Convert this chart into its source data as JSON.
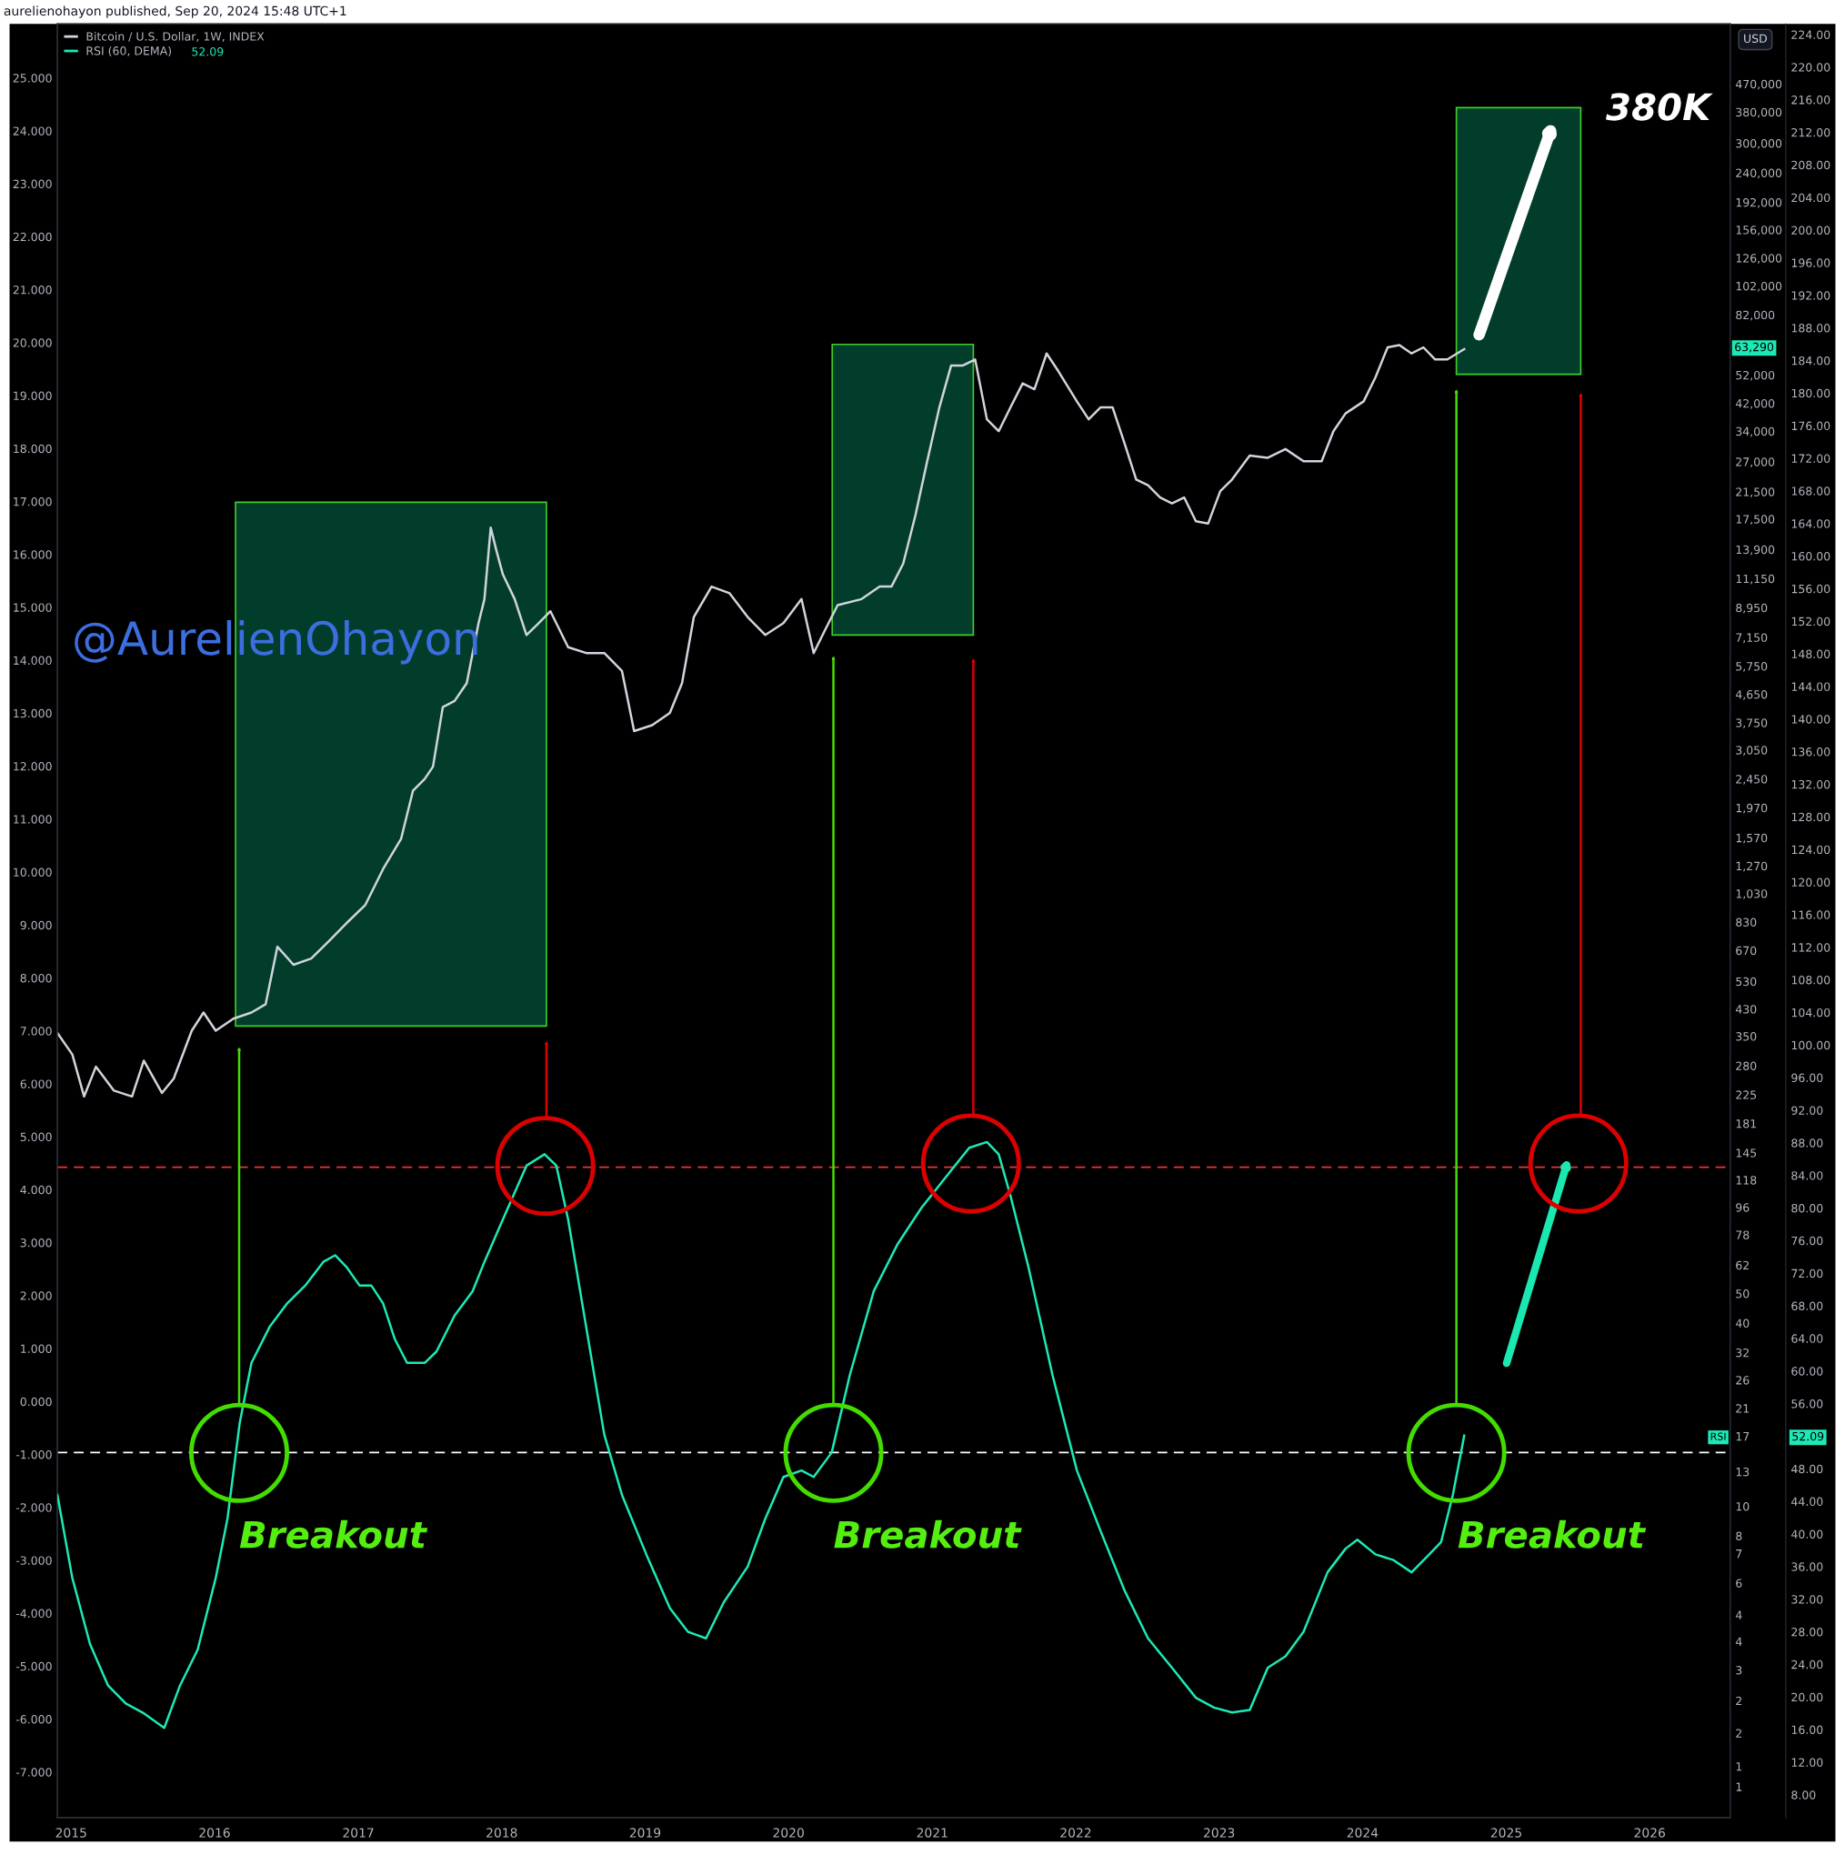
{
  "chart_data": {
    "type": "line",
    "log": "y2",
    "legend": "top left",
    "y2label": "USD",
    "xlim": [
      "2014-11-27",
      "2026-07-25"
    ],
    "xticks": [
      "2015",
      "2016",
      "2017",
      "2018",
      "2019",
      "2020",
      "2021",
      "2022",
      "2023",
      "2024",
      "2025",
      "2026"
    ],
    "ylim": [
      -7.86,
      26.02
    ],
    "yticks": [
      {
        "value": -7,
        "label": "-7.000"
      },
      {
        "value": -6,
        "label": "-6.000"
      },
      {
        "value": -5,
        "label": "-5.000"
      },
      {
        "value": -4,
        "label": "-4.000"
      },
      {
        "value": -3,
        "label": "-3.000"
      },
      {
        "value": -2,
        "label": "-2.000"
      },
      {
        "value": -1,
        "label": "-1.000"
      },
      {
        "value": 0,
        "label": "0.000"
      },
      {
        "value": 1,
        "label": "1.000"
      },
      {
        "value": 2,
        "label": "2.000"
      },
      {
        "value": 3,
        "label": "3.000"
      },
      {
        "value": 4,
        "label": "4.000"
      },
      {
        "value": 5,
        "label": "5.000"
      },
      {
        "value": 6,
        "label": "6.000"
      },
      {
        "value": 7,
        "label": "7.000"
      },
      {
        "value": 8,
        "label": "8.000"
      },
      {
        "value": 9,
        "label": "9.000"
      },
      {
        "value": 10,
        "label": "10.000"
      },
      {
        "value": 11,
        "label": "11.000"
      },
      {
        "value": 12,
        "label": "12.000"
      },
      {
        "value": 13,
        "label": "13.000"
      },
      {
        "value": 14,
        "label": "14.000"
      },
      {
        "value": 15,
        "label": "15.000"
      },
      {
        "value": 16,
        "label": "16.000"
      },
      {
        "value": 17,
        "label": "17.000"
      },
      {
        "value": 18,
        "label": "18.000"
      },
      {
        "value": 19,
        "label": "19.000"
      },
      {
        "value": 20,
        "label": "20.000"
      },
      {
        "value": 21,
        "label": "21.000"
      },
      {
        "value": 22,
        "label": "22.000"
      },
      {
        "value": 23,
        "label": "23.000"
      },
      {
        "value": 24,
        "label": "24.000"
      },
      {
        "value": 25,
        "label": "25.000"
      }
    ],
    "y2lim": [
      0.95,
      740000
    ],
    "y2ticks": [
      {
        "value": 1.2,
        "label": "1"
      },
      {
        "value": 1.4,
        "label": "1"
      },
      {
        "value": 1.8,
        "label": "2"
      },
      {
        "value": 2.3,
        "label": "2"
      },
      {
        "value": 2.9,
        "label": "3"
      },
      {
        "value": 3.6,
        "label": "4"
      },
      {
        "value": 4.4,
        "label": "4"
      },
      {
        "value": 5.6,
        "label": "6"
      },
      7,
      8,
      10,
      13,
      17,
      21,
      26,
      32,
      40,
      50,
      62,
      78,
      96,
      118,
      145,
      181,
      225,
      280,
      350,
      430,
      530,
      670,
      830,
      {
        "value": 1030,
        "label": "1,030"
      },
      {
        "value": 1270,
        "label": "1,270"
      },
      {
        "value": 1570,
        "label": "1,570"
      },
      {
        "value": 1970,
        "label": "1,970"
      },
      {
        "value": 2450,
        "label": "2,450"
      },
      {
        "value": 3050,
        "label": "3,050"
      },
      {
        "value": 3750,
        "label": "3,750"
      },
      {
        "value": 4650,
        "label": "4,650"
      },
      {
        "value": 5750,
        "label": "5,750"
      },
      {
        "value": 7150,
        "label": "7,150"
      },
      {
        "value": 8950,
        "label": "8,950"
      },
      {
        "value": 11150,
        "label": "11,150"
      },
      {
        "value": 13900,
        "label": "13,900"
      },
      {
        "value": 17500,
        "label": "17,500"
      },
      {
        "value": 21500,
        "label": "21,500"
      },
      {
        "value": 27000,
        "label": "27,000"
      },
      {
        "value": 34000,
        "label": "34,000"
      },
      {
        "value": 42000,
        "label": "42,000"
      },
      {
        "value": 52000,
        "label": "52,000"
      },
      {
        "value": 82000,
        "label": "82,000"
      },
      {
        "value": 102000,
        "label": "102,000"
      },
      {
        "value": 126000,
        "label": "126,000"
      },
      {
        "value": 156000,
        "label": "156,000"
      },
      {
        "value": 192000,
        "label": "192,000"
      },
      {
        "value": 240000,
        "label": "240,000"
      },
      {
        "value": 300000,
        "label": "300,000"
      },
      {
        "value": 380000,
        "label": "380,000"
      },
      {
        "value": 470000,
        "label": "470,000"
      }
    ],
    "y3lim": [
      5.2,
      225.3
    ],
    "y3ticks": [
      {
        "value": 8,
        "label": "8.00"
      },
      {
        "value": 12,
        "label": "12.00"
      },
      {
        "value": 16,
        "label": "16.00"
      },
      {
        "value": 20,
        "label": "20.00"
      },
      {
        "value": 24,
        "label": "24.00"
      },
      {
        "value": 28,
        "label": "28.00"
      },
      {
        "value": 32,
        "label": "32.00"
      },
      {
        "value": 36,
        "label": "36.00"
      },
      {
        "value": 40,
        "label": "40.00"
      },
      {
        "value": 44,
        "label": "44.00"
      },
      {
        "value": 48,
        "label": "48.00"
      },
      {
        "value": 56,
        "label": "56.00"
      },
      {
        "value": 60,
        "label": "60.00"
      },
      {
        "value": 64,
        "label": "64.00"
      },
      {
        "value": 68,
        "label": "68.00"
      },
      {
        "value": 72,
        "label": "72.00"
      },
      {
        "value": 76,
        "label": "76.00"
      },
      {
        "value": 80,
        "label": "80.00"
      },
      {
        "value": 84,
        "label": "84.00"
      },
      {
        "value": 88,
        "label": "88.00"
      },
      {
        "value": 92,
        "label": "92.00"
      },
      {
        "value": 96,
        "label": "96.00"
      },
      {
        "value": 100,
        "label": "100.00"
      },
      {
        "value": 104,
        "label": "104.00"
      },
      {
        "value": 108,
        "label": "108.00"
      },
      {
        "value": 112,
        "label": "112.00"
      },
      {
        "value": 116,
        "label": "116.00"
      },
      {
        "value": 120,
        "label": "120.00"
      },
      {
        "value": 124,
        "label": "124.00"
      },
      {
        "value": 128,
        "label": "128.00"
      },
      {
        "value": 132,
        "label": "132.00"
      },
      {
        "value": 136,
        "label": "136.00"
      },
      {
        "value": 140,
        "label": "140.00"
      },
      {
        "value": 144,
        "label": "144.00"
      },
      {
        "value": 148,
        "label": "148.00"
      },
      {
        "value": 152,
        "label": "152.00"
      },
      {
        "value": 156,
        "label": "156.00"
      },
      {
        "value": 160,
        "label": "160.00"
      },
      {
        "value": 164,
        "label": "164.00"
      },
      {
        "value": 168,
        "label": "168.00"
      },
      {
        "value": 172,
        "label": "172.00"
      },
      {
        "value": 176,
        "label": "176.00"
      },
      {
        "value": 180,
        "label": "180.00"
      },
      {
        "value": 184,
        "label": "184.00"
      },
      {
        "value": 188,
        "label": "188.00"
      },
      {
        "value": 192,
        "label": "192.00"
      },
      {
        "value": 196,
        "label": "196.00"
      },
      {
        "value": 200,
        "label": "200.00"
      },
      {
        "value": 204,
        "label": "204.00"
      },
      {
        "value": 208,
        "label": "208.00"
      },
      {
        "value": 212,
        "label": "212.00"
      },
      {
        "value": 216,
        "label": "216.00"
      },
      {
        "value": 220,
        "label": "220.00"
      },
      {
        "value": 224,
        "label": "224.00"
      }
    ],
    "ref_lines": [
      {
        "axis": "y3",
        "value": 50,
        "color": "#ffffff",
        "line_style": "dashed"
      },
      {
        "axis": "y3",
        "value": 85,
        "color": "#e53935",
        "line_style": "dashed"
      }
    ],
    "annotations": [
      "aurelienohayon published, Sep 20, 2024 15:48 UTC+1",
      "@AurelienOhayon",
      "Breakout",
      "Breakout",
      "Breakout",
      "380K",
      "52.09",
      "RSI",
      "63,290",
      "52.09"
    ],
    "series": [
      {
        "name": "Bitcoin / U.S. Dollar, 1W, INDEX",
        "axis": "y2",
        "color": "#d1d4dc",
        "x": [
          "2014-11-27",
          "2015-01-04",
          "2015-02-03",
          "2015-03-05",
          "2015-04-20",
          "2015-06-05",
          "2015-07-05",
          "2015-08-20",
          "2015-09-19",
          "2015-11-04",
          "2015-12-04",
          "2016-01-04",
          "2016-02-18",
          "2016-04-04",
          "2016-05-10",
          "2016-06-09",
          "2016-07-20",
          "2016-09-03",
          "2016-10-19",
          "2016-12-03",
          "2017-01-19",
          "2017-03-05",
          "2017-04-20",
          "2017-05-20",
          "2017-06-19",
          "2017-07-10",
          "2017-08-04",
          "2017-09-03",
          "2017-10-04",
          "2017-11-03",
          "2017-11-18",
          "2017-12-04",
          "2017-12-19",
          "2018-01-04",
          "2018-02-03",
          "2018-03-05",
          "2018-04-05",
          "2018-05-05",
          "2018-06-19",
          "2018-08-04",
          "2018-09-19",
          "2018-11-03",
          "2018-12-04",
          "2019-01-19",
          "2019-03-05",
          "2019-04-05",
          "2019-05-05",
          "2019-06-19",
          "2019-08-04",
          "2019-09-19",
          "2019-11-03",
          "2019-12-19",
          "2020-02-03",
          "2020-03-05",
          "2020-04-04",
          "2020-05-05",
          "2020-07-05",
          "2020-08-20",
          "2020-09-19",
          "2020-10-19",
          "2020-11-19",
          "2020-12-19",
          "2021-01-19",
          "2021-02-18",
          "2021-03-20",
          "2021-04-20",
          "2021-05-20",
          "2021-06-19",
          "2021-07-19",
          "2021-08-19",
          "2021-09-18",
          "2021-10-19",
          "2021-11-18",
          "2022-01-04",
          "2022-02-03",
          "2022-03-05",
          "2022-04-05",
          "2022-05-05",
          "2022-06-04",
          "2022-07-04",
          "2022-08-04",
          "2022-09-03",
          "2022-10-04",
          "2022-11-03",
          "2022-12-04",
          "2023-01-04",
          "2023-02-03",
          "2023-03-20",
          "2023-05-05",
          "2023-06-19",
          "2023-08-04",
          "2023-09-19",
          "2023-10-19",
          "2023-11-19",
          "2024-01-04",
          "2024-02-03",
          "2024-03-05",
          "2024-04-04",
          "2024-05-05",
          "2024-06-04",
          "2024-07-04",
          "2024-08-04",
          "2024-09-16"
        ],
        "values": [
          359,
          305,
          222,
          278,
          232,
          222,
          291,
          228,
          254,
          365,
          419,
          365,
          400,
          419,
          446,
          689,
          601,
          630,
          721,
          826,
          946,
          1240,
          1560,
          2240,
          2450,
          2690,
          4220,
          4420,
          5060,
          7960,
          9550,
          16400,
          13700,
          11500,
          9550,
          7280,
          7960,
          8710,
          6640,
          6350,
          6350,
          5550,
          3520,
          3680,
          4040,
          5060,
          8340,
          10500,
          9980,
          8340,
          7280,
          7960,
          9550,
          6350,
          7600,
          9120,
          9550,
          10500,
          10500,
          12500,
          18000,
          27100,
          40700,
          55900,
          55900,
          58500,
          37200,
          34000,
          40700,
          48800,
          46700,
          61200,
          53500,
          42600,
          37200,
          40700,
          40700,
          31100,
          23600,
          22600,
          20600,
          19700,
          20600,
          17200,
          16900,
          21600,
          23600,
          28300,
          27800,
          29700,
          27100,
          27100,
          34000,
          38900,
          42600,
          51100,
          64100,
          65200,
          61200,
          64100,
          58500,
          58500,
          63290
        ]
      },
      {
        "name": "RSI (60, DEMA)",
        "axis": "y3",
        "color": "#1de9b6",
        "x": [
          "2014-11-27",
          "2015-01-04",
          "2015-02-18",
          "2015-04-05",
          "2015-05-20",
          "2015-07-05",
          "2015-08-26",
          "2015-10-05",
          "2015-11-19",
          "2016-01-04",
          "2016-02-03",
          "2016-03-05",
          "2016-04-04",
          "2016-05-20",
          "2016-07-04",
          "2016-08-19",
          "2016-10-04",
          "2016-11-03",
          "2016-12-03",
          "2017-01-04",
          "2017-02-03",
          "2017-03-05",
          "2017-04-04",
          "2017-05-05",
          "2017-06-19",
          "2017-07-19",
          "2017-09-03",
          "2017-10-19",
          "2017-11-18",
          "2018-01-04",
          "2018-03-05",
          "2018-04-20",
          "2018-05-20",
          "2018-06-19",
          "2018-08-04",
          "2018-09-19",
          "2018-11-03",
          "2019-01-04",
          "2019-03-05",
          "2019-04-20",
          "2019-06-05",
          "2019-07-20",
          "2019-09-19",
          "2019-11-03",
          "2019-12-19",
          "2020-02-03",
          "2020-03-05",
          "2020-04-20",
          "2020-06-05",
          "2020-08-05",
          "2020-10-05",
          "2020-12-04",
          "2021-02-03",
          "2021-04-05",
          "2021-05-20",
          "2021-06-19",
          "2021-07-19",
          "2021-09-03",
          "2021-11-03",
          "2022-01-04",
          "2022-03-05",
          "2022-05-05",
          "2022-07-04",
          "2022-09-03",
          "2022-11-03",
          "2022-12-19",
          "2023-02-03",
          "2023-03-20",
          "2023-05-05",
          "2023-06-19",
          "2023-08-04",
          "2023-10-04",
          "2023-11-19",
          "2023-12-19",
          "2024-02-03",
          "2024-03-20",
          "2024-05-05",
          "2024-06-19",
          "2024-07-19",
          "2024-08-18",
          "2024-09-16"
        ],
        "values": [
          44.8,
          34.6,
          26.5,
          21.4,
          19.2,
          18.0,
          16.2,
          21.4,
          25.8,
          34.6,
          41.9,
          53.6,
          61.0,
          65.4,
          68.3,
          70.5,
          73.4,
          74.2,
          72.7,
          70.5,
          70.5,
          68.3,
          63.9,
          61.0,
          61.0,
          62.4,
          66.8,
          69.8,
          73.4,
          78.6,
          85.2,
          86.6,
          85.2,
          78.6,
          65.4,
          52.2,
          44.8,
          37.5,
          30.9,
          28.0,
          27.2,
          31.6,
          36.0,
          41.9,
          47.0,
          47.8,
          47.0,
          50.0,
          59.5,
          69.8,
          75.6,
          80.0,
          83.7,
          87.4,
          88.1,
          86.6,
          81.5,
          72.7,
          59.5,
          47.8,
          40.4,
          33.1,
          27.2,
          23.6,
          19.9,
          18.7,
          18.1,
          18.4,
          23.6,
          25.0,
          28.0,
          35.3,
          38.2,
          39.3,
          37.5,
          36.8,
          35.3,
          37.5,
          39.0,
          44.8,
          52.09
        ]
      }
    ]
  }
}
